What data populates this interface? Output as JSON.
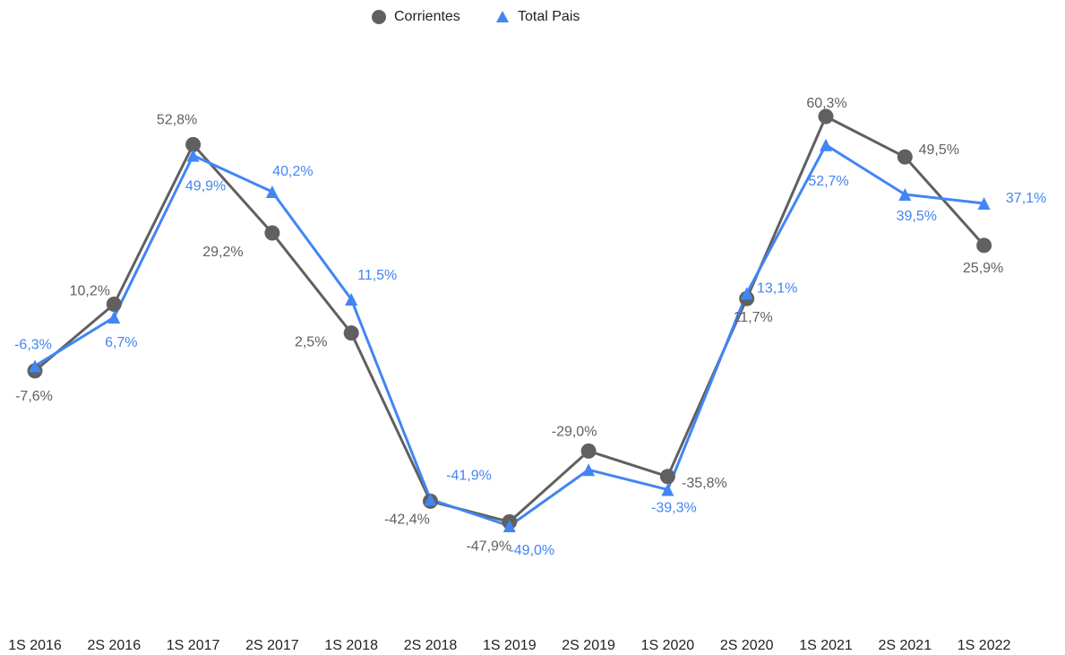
{
  "chart_data": {
    "type": "line",
    "categories": [
      "1S 2016",
      "2S 2016",
      "1S 2017",
      "2S 2017",
      "1S 2018",
      "2S 2018",
      "1S 2019",
      "2S 2019",
      "1S 2020",
      "2S 2020",
      "1S 2021",
      "2S 2021",
      "1S 2022"
    ],
    "series": [
      {
        "name": "Corrientes",
        "color": "#606060",
        "marker": "circle",
        "values": [
          -7.6,
          10.2,
          52.8,
          29.2,
          2.5,
          -42.4,
          -47.9,
          -29.0,
          -35.8,
          11.7,
          60.3,
          49.5,
          25.9
        ],
        "labels": [
          "-7,6%",
          "10,2%",
          "52,8%",
          "29,2%",
          "2,5%",
          "-42,4%",
          "-47,9%",
          "-29,0%",
          "-35,8%",
          "11,7%",
          "60,3%",
          "49,5%",
          "25,9%"
        ]
      },
      {
        "name": "Total Pais",
        "color": "#4285f4",
        "marker": "triangle",
        "values": [
          -6.3,
          6.7,
          49.9,
          40.2,
          11.5,
          -41.9,
          -49.0,
          -34.0,
          -39.3,
          13.1,
          52.7,
          39.5,
          37.1
        ],
        "labels": [
          "-6,3%",
          "6,7%",
          "49,9%",
          "40,2%",
          "11,5%",
          "-41,9%",
          "-49,0%",
          "",
          "-39,3%",
          "13,1%",
          "52,7%",
          "39,5%",
          "37,1%"
        ]
      }
    ],
    "ylim": [
      -70,
      70
    ],
    "grid": false,
    "legend_position": "top-center"
  }
}
